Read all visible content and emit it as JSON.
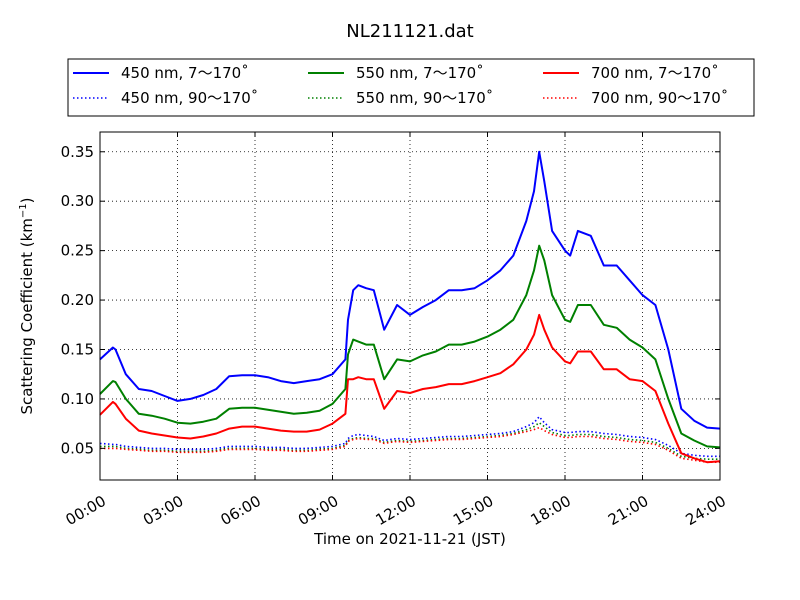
{
  "chart_data": {
    "type": "line",
    "title": "NL211121.dat",
    "xlabel": "Time on 2021-11-21 (JST)",
    "ylabel": "Scattering Coefficient (km",
    "ylabel_sup": "−1",
    "ylabel_close": ")",
    "xlim": [
      0,
      24
    ],
    "ylim": [
      0.018,
      0.37
    ],
    "grid": true,
    "legend_position": "top, outside plot",
    "x_tick_values": [
      0,
      3,
      6,
      9,
      12,
      15,
      18,
      21,
      24
    ],
    "x_tick_labels": [
      "00:00",
      "03:00",
      "06:00",
      "09:00",
      "12:00",
      "15:00",
      "18:00",
      "21:00",
      "24:00"
    ],
    "y_tick_values": [
      0.05,
      0.1,
      0.15,
      0.2,
      0.25,
      0.3,
      0.35
    ],
    "y_tick_labels": [
      "0.05",
      "0.10",
      "0.15",
      "0.20",
      "0.25",
      "0.30",
      "0.35"
    ],
    "x": [
      0,
      0.5,
      0.6,
      1,
      1.5,
      2,
      2.5,
      3,
      3.5,
      4,
      4.5,
      5,
      5.5,
      6,
      6.5,
      7,
      7.5,
      8,
      8.5,
      9,
      9.5,
      9.6,
      9.8,
      10,
      10.3,
      10.6,
      11,
      11.5,
      12,
      12.5,
      13,
      13.5,
      14,
      14.5,
      15,
      15.5,
      16,
      16.5,
      16.8,
      17,
      17.2,
      17.5,
      18,
      18.2,
      18.5,
      19,
      19.5,
      20,
      20.5,
      21,
      21.5,
      22,
      22.5,
      23,
      23.5,
      24
    ],
    "series": [
      {
        "name": "450 nm, 7～170˚",
        "color": "#0000ff",
        "style": "solid",
        "values": [
          0.14,
          0.152,
          0.15,
          0.125,
          0.11,
          0.108,
          0.103,
          0.098,
          0.1,
          0.104,
          0.11,
          0.123,
          0.124,
          0.124,
          0.122,
          0.118,
          0.116,
          0.118,
          0.12,
          0.125,
          0.14,
          0.18,
          0.21,
          0.215,
          0.212,
          0.21,
          0.17,
          0.195,
          0.185,
          0.193,
          0.2,
          0.21,
          0.21,
          0.212,
          0.22,
          0.23,
          0.245,
          0.28,
          0.31,
          0.35,
          0.32,
          0.27,
          0.25,
          0.245,
          0.27,
          0.265,
          0.235,
          0.235,
          0.22,
          0.205,
          0.195,
          0.15,
          0.09,
          0.078,
          0.071,
          0.07
        ]
      },
      {
        "name": "550 nm, 7～170˚",
        "color": "#008000",
        "style": "solid",
        "values": [
          0.105,
          0.118,
          0.117,
          0.1,
          0.085,
          0.083,
          0.08,
          0.076,
          0.075,
          0.077,
          0.08,
          0.09,
          0.091,
          0.091,
          0.089,
          0.087,
          0.085,
          0.086,
          0.088,
          0.095,
          0.11,
          0.145,
          0.16,
          0.158,
          0.155,
          0.155,
          0.12,
          0.14,
          0.138,
          0.144,
          0.148,
          0.155,
          0.155,
          0.158,
          0.163,
          0.17,
          0.18,
          0.205,
          0.23,
          0.255,
          0.24,
          0.205,
          0.18,
          0.178,
          0.195,
          0.195,
          0.175,
          0.172,
          0.16,
          0.152,
          0.14,
          0.1,
          0.065,
          0.058,
          0.052,
          0.051
        ]
      },
      {
        "name": "700 nm, 7～170˚",
        "color": "#ff0000",
        "style": "solid",
        "values": [
          0.084,
          0.097,
          0.095,
          0.08,
          0.068,
          0.065,
          0.063,
          0.061,
          0.06,
          0.062,
          0.065,
          0.07,
          0.072,
          0.072,
          0.07,
          0.068,
          0.067,
          0.067,
          0.069,
          0.075,
          0.085,
          0.12,
          0.12,
          0.122,
          0.12,
          0.12,
          0.09,
          0.108,
          0.106,
          0.11,
          0.112,
          0.115,
          0.115,
          0.118,
          0.122,
          0.126,
          0.135,
          0.15,
          0.165,
          0.185,
          0.17,
          0.152,
          0.138,
          0.136,
          0.148,
          0.148,
          0.13,
          0.13,
          0.12,
          0.118,
          0.108,
          0.075,
          0.045,
          0.04,
          0.036,
          0.037
        ]
      },
      {
        "name": "450 nm, 90～170˚",
        "color": "#0000ff",
        "style": "dotted",
        "values": [
          0.055,
          0.054,
          0.054,
          0.052,
          0.051,
          0.05,
          0.05,
          0.049,
          0.049,
          0.049,
          0.05,
          0.052,
          0.052,
          0.052,
          0.051,
          0.051,
          0.05,
          0.05,
          0.051,
          0.052,
          0.055,
          0.06,
          0.063,
          0.064,
          0.063,
          0.062,
          0.058,
          0.06,
          0.059,
          0.06,
          0.061,
          0.062,
          0.062,
          0.063,
          0.064,
          0.065,
          0.067,
          0.072,
          0.076,
          0.082,
          0.076,
          0.069,
          0.066,
          0.066,
          0.067,
          0.067,
          0.065,
          0.064,
          0.062,
          0.061,
          0.059,
          0.053,
          0.045,
          0.043,
          0.042,
          0.042
        ]
      },
      {
        "name": "550 nm, 90～170˚",
        "color": "#008000",
        "style": "dotted",
        "values": [
          0.052,
          0.052,
          0.052,
          0.05,
          0.049,
          0.048,
          0.048,
          0.047,
          0.047,
          0.047,
          0.048,
          0.05,
          0.05,
          0.05,
          0.049,
          0.049,
          0.048,
          0.048,
          0.049,
          0.05,
          0.053,
          0.058,
          0.06,
          0.061,
          0.06,
          0.06,
          0.056,
          0.058,
          0.057,
          0.058,
          0.059,
          0.06,
          0.06,
          0.061,
          0.062,
          0.063,
          0.065,
          0.069,
          0.072,
          0.076,
          0.072,
          0.066,
          0.063,
          0.063,
          0.064,
          0.064,
          0.062,
          0.061,
          0.059,
          0.058,
          0.056,
          0.05,
          0.042,
          0.04,
          0.039,
          0.039
        ]
      },
      {
        "name": "700 nm, 90～170˚",
        "color": "#ff0000",
        "style": "dotted",
        "values": [
          0.05,
          0.05,
          0.05,
          0.049,
          0.048,
          0.047,
          0.047,
          0.046,
          0.046,
          0.046,
          0.047,
          0.049,
          0.049,
          0.049,
          0.048,
          0.048,
          0.047,
          0.047,
          0.048,
          0.049,
          0.052,
          0.057,
          0.059,
          0.06,
          0.059,
          0.059,
          0.055,
          0.057,
          0.056,
          0.057,
          0.058,
          0.059,
          0.059,
          0.06,
          0.061,
          0.062,
          0.064,
          0.067,
          0.069,
          0.071,
          0.068,
          0.064,
          0.061,
          0.061,
          0.062,
          0.062,
          0.06,
          0.059,
          0.057,
          0.056,
          0.054,
          0.048,
          0.04,
          0.038,
          0.036,
          0.036
        ]
      }
    ]
  }
}
